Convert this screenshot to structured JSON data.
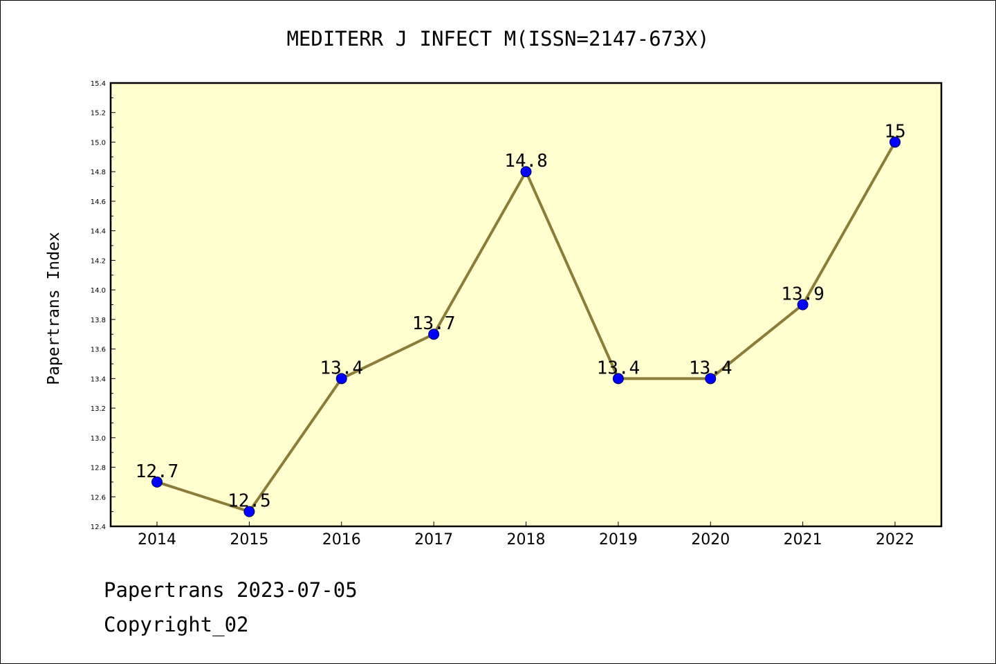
{
  "chart_data": {
    "type": "line",
    "title": "MEDITERR J INFECT M(ISSN=2147-673X)",
    "ylabel": "Papertrans Index",
    "xlabel": "",
    "categories": [
      "2014",
      "2015",
      "2016",
      "2017",
      "2018",
      "2019",
      "2020",
      "2021",
      "2022"
    ],
    "values": [
      12.7,
      12.5,
      13.4,
      13.7,
      14.8,
      13.4,
      13.4,
      13.9,
      15.0
    ],
    "data_labels": [
      "12.7",
      "12.5",
      "13.4",
      "13.7",
      "14.8",
      "13.4",
      "13.4",
      "13.9",
      "15"
    ],
    "ylim": [
      12.4,
      15.4
    ],
    "yticks": [
      "12.4",
      "12.6",
      "12.8",
      "13.0",
      "13.2",
      "13.4",
      "13.6",
      "13.8",
      "14.0",
      "14.2",
      "14.4",
      "14.6",
      "14.8",
      "15.0",
      "15.2",
      "15.4"
    ],
    "grid": false,
    "colors": {
      "plot_background": "#ffffd0",
      "line": "#8b7d37",
      "marker": "#0000ff",
      "marker_edge": "#00005a"
    }
  },
  "footer": {
    "line1": "Papertrans 2023-07-05",
    "line2": "Copyright_02"
  }
}
